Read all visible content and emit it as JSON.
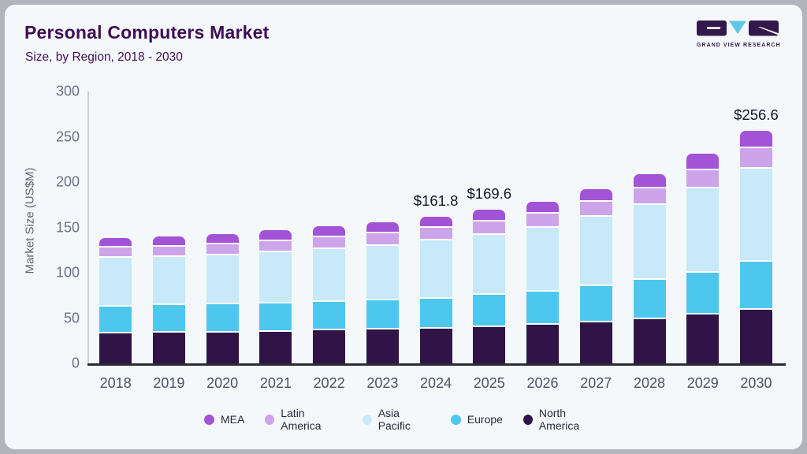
{
  "page": {
    "background": "#b1b4bb",
    "card_background": "#f5f8fb"
  },
  "header": {
    "title": "Personal Computers Market",
    "subtitle": "Size, by Region, 2018 - 2030"
  },
  "logo": {
    "brand_text": "GRAND VIEW RESEARCH"
  },
  "colors": {
    "title": "#3e0e56",
    "axis_text": "#6a7280",
    "x_axis_line": "#272c37",
    "y_axis_line": "#ccd1d8",
    "value_label": "#101826"
  },
  "chart_data": {
    "type": "bar",
    "stacked": true,
    "title": "Personal Computers Market",
    "subtitle": "Size, by Region, 2018 - 2030",
    "xlabel": "",
    "ylabel": "Market Size (US$M)",
    "ylim": [
      0,
      300
    ],
    "yticks": [
      "0",
      "50",
      "100",
      "150",
      "200",
      "250",
      "300"
    ],
    "grid": false,
    "legend_position": "bottom",
    "categories": [
      "2018",
      "2019",
      "2020",
      "2021",
      "2022",
      "2023",
      "2024",
      "2025",
      "2026",
      "2027",
      "2028",
      "2029",
      "2030"
    ],
    "series": [
      {
        "name": "North America",
        "color": "#301447",
        "values": [
          35.0,
          35.5,
          36.0,
          36.9,
          37.9,
          38.9,
          40.2,
          41.8,
          44.3,
          47.2,
          50.1,
          55.4,
          61.1
        ]
      },
      {
        "name": "Europe",
        "color": "#4ec7ef",
        "values": [
          29.7,
          30.2,
          30.6,
          31.2,
          32.0,
          32.8,
          33.2,
          35.9,
          36.7,
          39.6,
          43.7,
          46.7,
          52.4
        ]
      },
      {
        "name": "Asia Pacific",
        "color": "#c7e9f9",
        "values": [
          53.4,
          53.0,
          54.2,
          55.8,
          57.6,
          60.0,
          63.6,
          65.9,
          70.5,
          76.4,
          83.1,
          92.4,
          103.2
        ]
      },
      {
        "name": "Latin America",
        "color": "#cda4e9",
        "values": [
          11.2,
          11.8,
          12.4,
          13.0,
          13.4,
          13.8,
          14.0,
          15.0,
          15.4,
          16.6,
          17.5,
          20.4,
          22.4
        ]
      },
      {
        "name": "MEA",
        "color": "#a353d5",
        "values": [
          9.2,
          9.5,
          9.6,
          9.8,
          10.0,
          10.4,
          10.8,
          11.0,
          11.5,
          12.5,
          14.6,
          16.3,
          17.5
        ]
      }
    ],
    "totals": [
      138.5,
      140.0,
      142.8,
      146.7,
      150.9,
      155.9,
      161.8,
      169.6,
      178.4,
      192.3,
      209.0,
      231.2,
      256.6
    ],
    "value_labels": [
      {
        "category": "2024",
        "text": "$161.8"
      },
      {
        "category": "2025",
        "text": "$169.6"
      },
      {
        "category": "2030",
        "text": "$256.6"
      }
    ],
    "legend": [
      {
        "label": "MEA",
        "color": "#a353d5"
      },
      {
        "label": "Latin America",
        "color": "#cda4e9"
      },
      {
        "label": "Asia Pacific",
        "color": "#c7e9f9"
      },
      {
        "label": "Europe",
        "color": "#4ec7ef"
      },
      {
        "label": "North America",
        "color": "#301447"
      }
    ]
  }
}
